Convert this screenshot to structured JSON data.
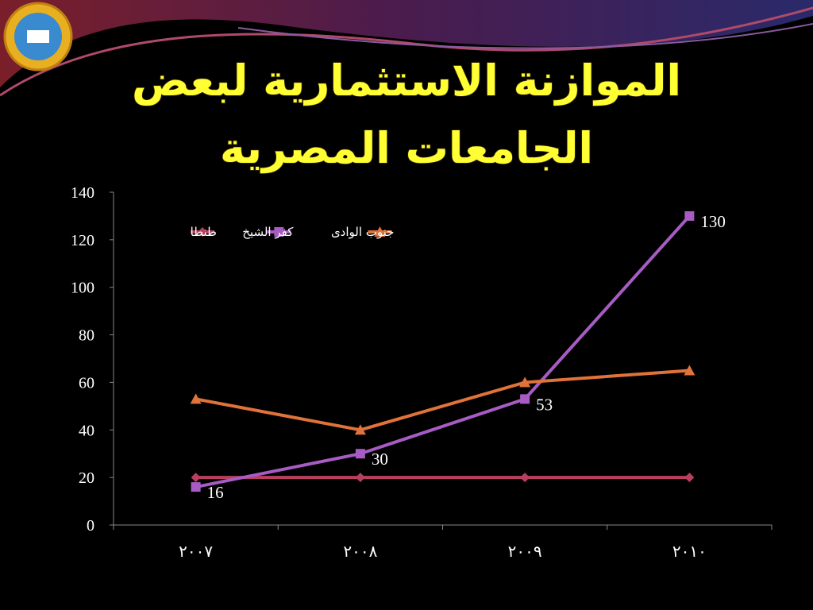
{
  "chart_data": {
    "type": "line",
    "title": [
      "الموازنة الاستثمارية لبعض",
      "الجامعات المصرية"
    ],
    "categories": [
      "٢٠٠٧",
      "٢٠٠٨",
      "٢٠٠٩",
      "٢٠١٠"
    ],
    "series": [
      {
        "name": "طنطا",
        "color": "#b8405e",
        "marker": "diamond",
        "values": [
          20,
          20,
          20,
          20
        ]
      },
      {
        "name": "كفر الشيخ",
        "color": "#a75cc4",
        "marker": "square",
        "show_labels": true,
        "values": [
          16,
          30,
          53,
          130
        ]
      },
      {
        "name": "جنوب الوادى",
        "color": "#e0733a",
        "marker": "triangle",
        "values": [
          53,
          40,
          60,
          65
        ]
      }
    ],
    "ylim": [
      0,
      140
    ],
    "yticks": [
      0,
      20,
      40,
      60,
      80,
      100,
      120,
      140
    ],
    "legend": "top",
    "grid": false
  }
}
